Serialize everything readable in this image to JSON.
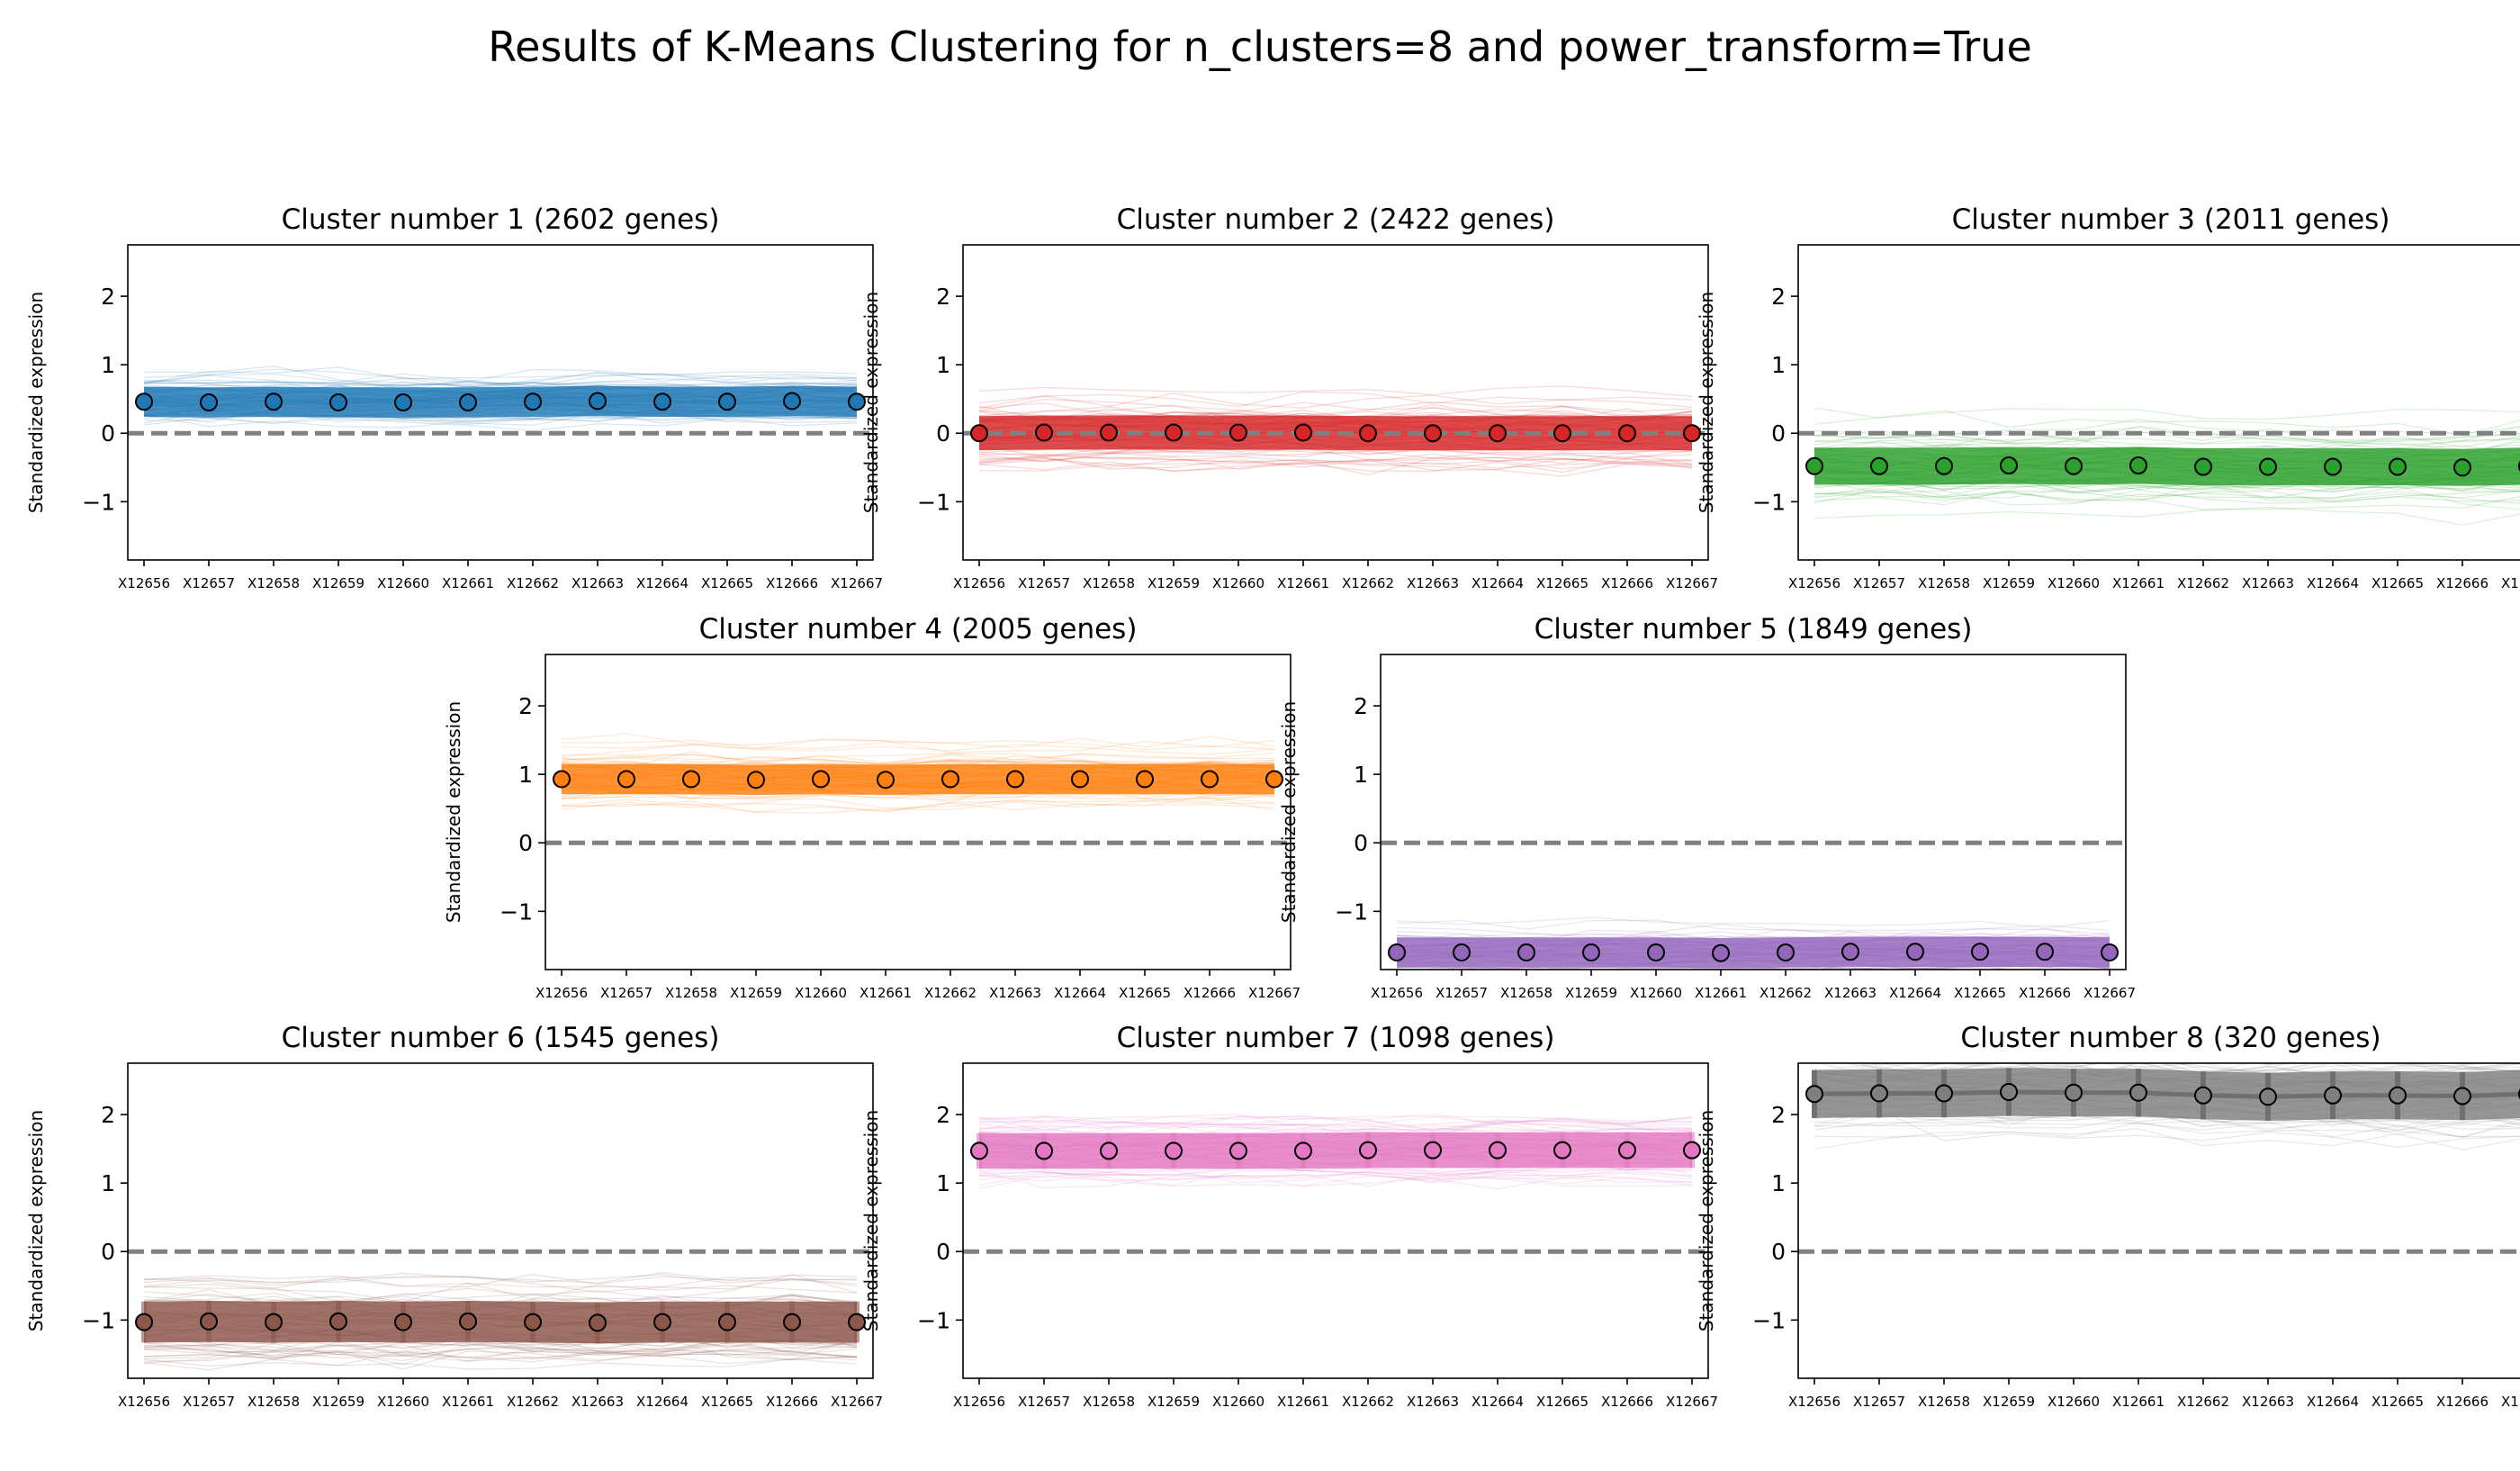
{
  "suptitle": "Results of K-Means Clustering for n_clusters=8 and power_transform=True",
  "chart_data": {
    "type": "line",
    "title": "Results of K-Means Clustering for n_clusters=8 and power_transform=True",
    "categories": [
      "X12656",
      "X12657",
      "X12658",
      "X12659",
      "X12660",
      "X12661",
      "X12662",
      "X12663",
      "X12664",
      "X12665",
      "X12666",
      "X12667"
    ],
    "ylabel": "Standardized expression",
    "ylim": [
      -1.85,
      2.75
    ],
    "yticks": [
      -1,
      0,
      1,
      2
    ],
    "reference_line": 0,
    "grid": false,
    "panels": [
      {
        "title": "Cluster number 1 (2602 genes)",
        "color": "#1f77b4",
        "means": [
          0.46,
          0.45,
          0.46,
          0.45,
          0.45,
          0.45,
          0.46,
          0.47,
          0.46,
          0.46,
          0.47,
          0.46
        ],
        "sd": 0.22
      },
      {
        "title": "Cluster number 2 (2422 genes)",
        "color": "#d62728",
        "means": [
          0.0,
          0.01,
          0.01,
          0.01,
          0.01,
          0.01,
          0.0,
          0.0,
          0.0,
          0.0,
          0.0,
          0.0
        ],
        "sd": 0.25
      },
      {
        "title": "Cluster number 3 (2011 genes)",
        "color": "#2ca02c",
        "means": [
          -0.48,
          -0.48,
          -0.48,
          -0.47,
          -0.48,
          -0.47,
          -0.49,
          -0.49,
          -0.49,
          -0.49,
          -0.5,
          -0.48
        ],
        "sd": 0.27
      },
      {
        "title": "Cluster number 4 (2005 genes)",
        "color": "#ff7f0e",
        "means": [
          0.93,
          0.93,
          0.93,
          0.92,
          0.93,
          0.92,
          0.93,
          0.93,
          0.93,
          0.93,
          0.93,
          0.93
        ],
        "sd": 0.22
      },
      {
        "title": "Cluster number 5 (1849 genes)",
        "color": "#9467bd",
        "means": [
          -1.6,
          -1.6,
          -1.6,
          -1.6,
          -1.6,
          -1.61,
          -1.6,
          -1.59,
          -1.59,
          -1.59,
          -1.59,
          -1.6
        ],
        "sd": 0.22
      },
      {
        "title": "Cluster number 6 (1545 genes)",
        "color": "#8c564b",
        "means": [
          -1.03,
          -1.02,
          -1.03,
          -1.02,
          -1.03,
          -1.02,
          -1.03,
          -1.04,
          -1.03,
          -1.03,
          -1.03,
          -1.03
        ],
        "sd": 0.3
      },
      {
        "title": "Cluster number 7 (1098 genes)",
        "color": "#e377c2",
        "means": [
          1.47,
          1.47,
          1.47,
          1.47,
          1.47,
          1.47,
          1.48,
          1.48,
          1.48,
          1.48,
          1.48,
          1.48
        ],
        "sd": 0.26
      },
      {
        "title": "Cluster number 8 (320 genes)",
        "color": "#7f7f7f",
        "means": [
          2.3,
          2.31,
          2.31,
          2.33,
          2.32,
          2.32,
          2.28,
          2.26,
          2.28,
          2.28,
          2.27,
          2.3
        ],
        "sd": 0.35
      }
    ]
  }
}
